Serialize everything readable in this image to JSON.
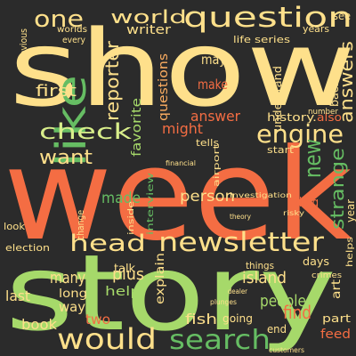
{
  "palette": {
    "background": "#2b2b2b",
    "orange": "#f46d43",
    "cream": "#fee08b",
    "light_green": "#a6d96a",
    "green": "#66bd63",
    "pale_green": "#d9ef8b",
    "dark_red": "#d73027",
    "peach": "#fdae61",
    "dark_green": "#1a9850"
  },
  "words": {
    "show": "show",
    "week": "week",
    "story": "story",
    "question": "question",
    "like": "like",
    "newsletter": "newsletter",
    "would": "would",
    "search": "search",
    "engine": "engine",
    "one": "one",
    "world": "world",
    "reporter": "reporter",
    "check": "check",
    "head": "head",
    "new": "new",
    "strange": "strange",
    "want": "want",
    "first": "first",
    "writer": "writer",
    "questions": "questions",
    "favorite": "favorite",
    "might": "might",
    "answers": "answers",
    "answer": "answer",
    "history": "history.",
    "also": "also",
    "may": "may",
    "make": "make",
    "person": "person",
    "interview": "interview",
    "drug": "drug",
    "year": "year",
    "made": "made",
    "talk": "talk",
    "plus": "plus",
    "explain": "explain",
    "island": "island",
    "find": "find",
    "people": "people",
    "many": "many",
    "help": "help",
    "long": "long",
    "way": "way",
    "two": "two",
    "fish": "fish",
    "going": "going",
    "book": "book",
    "last": "last",
    "art": "art",
    "feed": "feed",
    "part": "part",
    "days": "days",
    "things": "things",
    "series": "series",
    "life": "life",
    "years": "years",
    "see": "see",
    "start": "start",
    "understand": "understand",
    "tells": "tells",
    "airport": "airport",
    "look": "look",
    "election": "election",
    "every": "every",
    "previous": "previous",
    "worlds": "worlds",
    "inside": "inside",
    "change": "change",
    "back": "back",
    "number": "number",
    "end": "end",
    "crimes": "crimes",
    "helps": "helps",
    "investigation": "investigation",
    "theory": "theory",
    "risky": "risky",
    "dealer": "dealer",
    "plunges": "plunges",
    "customers": "customers",
    "financial": "financial"
  }
}
